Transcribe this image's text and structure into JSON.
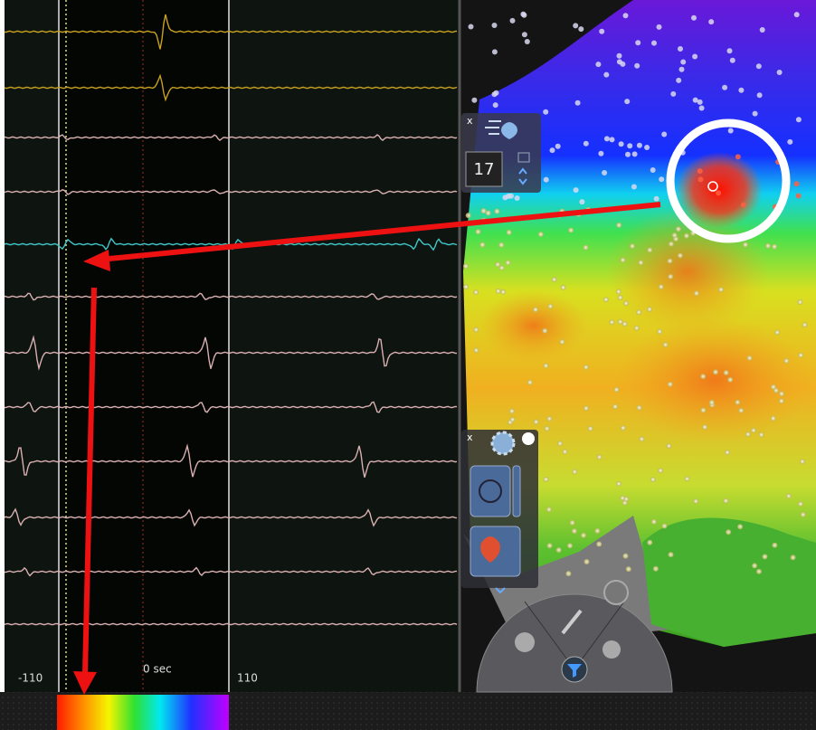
{
  "ecg_panel": {
    "time_axis": {
      "start": "-110",
      "center": "0 sec",
      "end": "110"
    }
  },
  "map_panel": {
    "point_widget": {
      "close": "x",
      "value": "17"
    },
    "tools_widget": {
      "close": "x"
    }
  }
}
